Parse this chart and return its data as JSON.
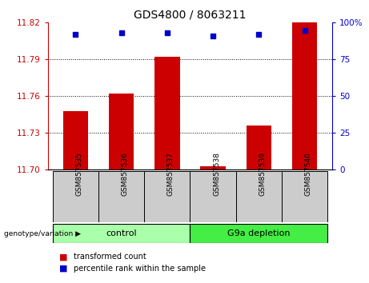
{
  "title": "GDS4800 / 8063211",
  "samples": [
    "GSM857535",
    "GSM857536",
    "GSM857537",
    "GSM857538",
    "GSM857539",
    "GSM857540"
  ],
  "groups": [
    "control",
    "control",
    "control",
    "G9a depletion",
    "G9a depletion",
    "G9a depletion"
  ],
  "transformed_count": [
    11.748,
    11.762,
    11.792,
    11.703,
    11.736,
    11.82
  ],
  "percentile_rank": [
    92,
    93,
    93,
    91,
    92,
    95
  ],
  "y_min": 11.7,
  "y_max": 11.82,
  "y_ticks": [
    11.7,
    11.73,
    11.76,
    11.79,
    11.82
  ],
  "y2_ticks": [
    0,
    25,
    50,
    75,
    100
  ],
  "bar_color": "#cc0000",
  "dot_color": "#0000cc",
  "control_color": "#aaffaa",
  "g9a_color": "#44ee44",
  "left_axis_color": "#cc0000",
  "right_axis_color": "#0000cc",
  "background_color": "#ffffff",
  "sample_box_color": "#cccccc",
  "group_defs": [
    {
      "name": "control",
      "start": 0,
      "end": 2
    },
    {
      "name": "G9a depletion",
      "start": 3,
      "end": 5
    }
  ]
}
